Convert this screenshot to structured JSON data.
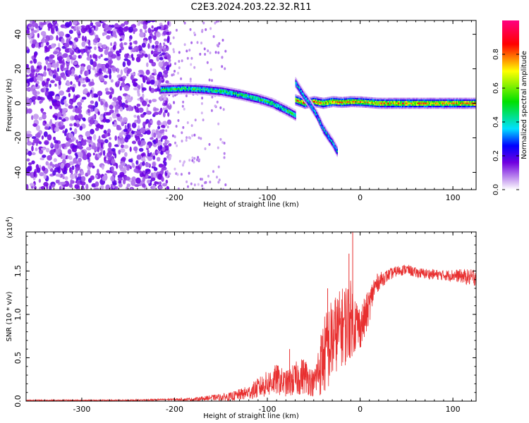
{
  "title": "C2E3.2024.203.22.32.R11",
  "chart_data": [
    {
      "type": "heatmap",
      "name": "spectrogram",
      "xlabel": "Height of straight line (km)",
      "ylabel": "Frequency (Hz)",
      "xlim": [
        -360,
        125
      ],
      "ylim": [
        -50,
        48
      ],
      "x_ticks": [
        -300,
        -200,
        -100,
        0,
        100
      ],
      "y_ticks": [
        -40,
        -20,
        0,
        20,
        40
      ],
      "x_tick_labels": [
        "-300",
        "-200",
        "-100",
        "0",
        "100"
      ],
      "y_tick_labels": [
        "-40",
        "-20",
        "0",
        "20",
        "40"
      ],
      "colorbar": {
        "label": "Normalized spectral amplitude",
        "range": [
          0,
          1
        ],
        "ticks": [
          0.0,
          0.2,
          0.4,
          0.6,
          0.8
        ],
        "tick_labels": [
          "0.0",
          "0.2",
          "0.4",
          "0.6",
          "0.8"
        ],
        "colors": [
          "#ffffff",
          "#c8a0f0",
          "#7000e0",
          "#0000ff",
          "#00e0ff",
          "#00e000",
          "#ffff00",
          "#ff0000",
          "#ff0080"
        ]
      },
      "noise_region_x": [
        -360,
        -215
      ],
      "tracks": [
        {
          "x": [
            -215,
            -190,
            -170,
            -150,
            -130,
            -110,
            -95,
            -80,
            -70
          ],
          "y": [
            8,
            8.5,
            8,
            7,
            5,
            2.5,
            0,
            -4,
            -7
          ],
          "amplitude": 0.55
        },
        {
          "x": [
            -70,
            -60,
            -50,
            -40,
            -30,
            -20,
            -10,
            0,
            20,
            50,
            80,
            110,
            125
          ],
          "y": [
            2,
            0,
            1,
            0,
            1,
            0.5,
            1,
            0.8,
            0,
            0,
            0,
            0,
            0
          ],
          "amplitude": 0.85
        },
        {
          "x": [
            -70,
            -62,
            -55,
            -47,
            -40,
            -30,
            -25
          ],
          "y": [
            12,
            5,
            0,
            -7,
            -15,
            -23,
            -28
          ],
          "amplitude": 0.45
        }
      ]
    },
    {
      "type": "line",
      "name": "snr",
      "xlabel": "Height of straight line (km)",
      "ylabel": "SNR (10 * v/v)",
      "scale_label": "(x10",
      "scale_exp": "4",
      "xlim": [
        -360,
        125
      ],
      "ylim": [
        0,
        1.95
      ],
      "x_ticks": [
        -300,
        -200,
        -100,
        0,
        100
      ],
      "y_ticks": [
        0.0,
        0.5,
        1.0,
        1.5
      ],
      "x_tick_labels": [
        "-300",
        "-200",
        "-100",
        "0",
        "100"
      ],
      "y_tick_labels": [
        "0.0",
        "0.5",
        "1.0",
        "1.5"
      ],
      "color": "#e83030",
      "series": [
        {
          "x": [
            -360,
            -250,
            -200,
            -180,
            -160,
            -140,
            -120,
            -110,
            -100,
            -90,
            -80,
            -70,
            -60,
            -50,
            -45,
            -40,
            -35,
            -30,
            -25,
            -20,
            -15,
            -10,
            -5,
            0,
            5,
            10,
            15,
            20,
            30,
            40,
            50,
            60,
            70,
            80,
            90,
            100,
            110,
            120,
            125
          ],
          "y": [
            0.01,
            0.01,
            0.02,
            0.02,
            0.04,
            0.05,
            0.1,
            0.15,
            0.2,
            0.25,
            0.2,
            0.25,
            0.3,
            0.2,
            0.35,
            0.5,
            0.6,
            0.7,
            0.8,
            0.85,
            0.9,
            0.95,
            0.9,
            0.85,
            0.95,
            1.1,
            1.3,
            1.38,
            1.45,
            1.5,
            1.52,
            1.48,
            1.47,
            1.46,
            1.45,
            1.45,
            1.44,
            1.42,
            1.45
          ],
          "spread": [
            0.005,
            0.006,
            0.01,
            0.02,
            0.03,
            0.05,
            0.08,
            0.12,
            0.15,
            0.18,
            0.15,
            0.2,
            0.22,
            0.15,
            0.3,
            0.45,
            0.5,
            0.5,
            0.45,
            0.45,
            0.5,
            0.45,
            0.35,
            0.25,
            0.25,
            0.2,
            0.15,
            0.1,
            0.07,
            0.06,
            0.06,
            0.06,
            0.06,
            0.06,
            0.06,
            0.07,
            0.08,
            0.1,
            0.12
          ]
        }
      ],
      "spikes": [
        {
          "x": -8,
          "y": 1.95
        },
        {
          "x": -12,
          "y": 1.7
        },
        {
          "x": -35,
          "y": 1.3
        },
        {
          "x": -76,
          "y": 0.6
        }
      ]
    }
  ]
}
